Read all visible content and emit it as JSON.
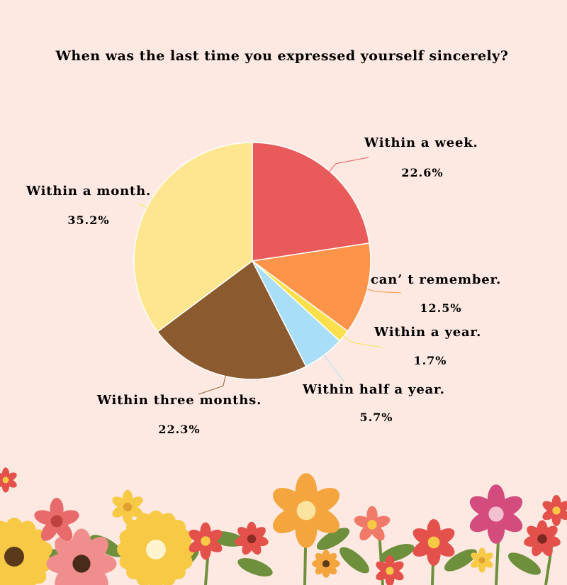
{
  "chart_data": {
    "type": "pie",
    "title": "When was the last time you expressed yourself sincerely?",
    "slices": [
      {
        "label": "Within a week.",
        "value": 22.6,
        "display": "22.6%",
        "color": "#e85b5a"
      },
      {
        "label": "can’ t remember.",
        "value": 12.5,
        "display": "12.5%",
        "color": "#fd9449"
      },
      {
        "label": "Within a year.",
        "value": 1.7,
        "display": "1.7%",
        "color": "#fbe04c"
      },
      {
        "label": "Within half a year.",
        "value": 5.7,
        "display": "5.7%",
        "color": "#a8def7"
      },
      {
        "label": "Within three months.",
        "value": 22.3,
        "display": "22.3%",
        "color": "#8b5a2e"
      },
      {
        "label": "Within a month.",
        "value": 35.2,
        "display": "35.2%",
        "color": "#fde68f"
      }
    ],
    "legend": "none"
  },
  "colors": {
    "background": "#fde9e2",
    "flower_red": "#e4504a",
    "flower_orange": "#f4a53d",
    "flower_yellow": "#f7c945",
    "flower_pink": "#f08d8d",
    "flower_magenta": "#d44b7e",
    "leaf_green": "#6e8f3c"
  }
}
